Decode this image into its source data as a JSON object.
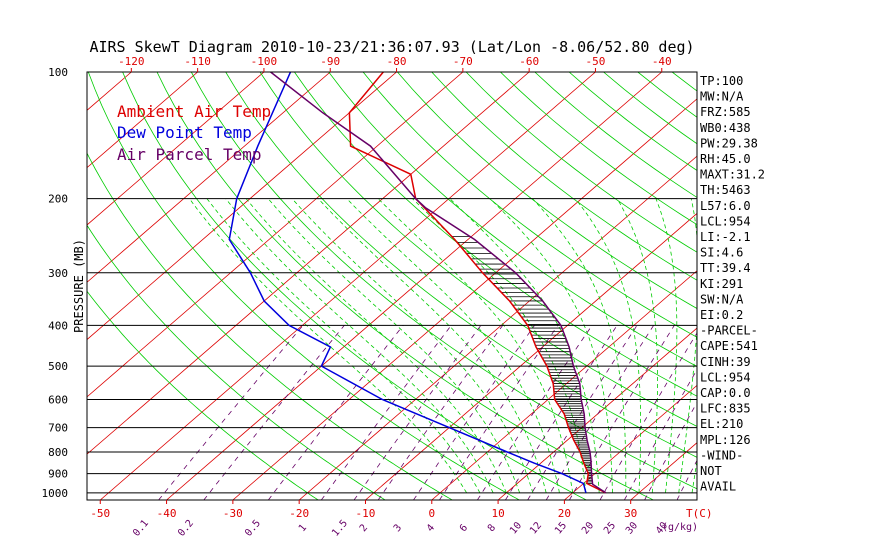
{
  "chart_data": {
    "type": "line",
    "title": "AIRS SkewT Diagram 2010-10-23/21:36:07.93 (Lat/Lon -8.06/52.80 deg)",
    "ylabel": "PRESSURE (MB)",
    "y_scale": "log",
    "ylim": [
      1040,
      100
    ],
    "xlim_bottom": [
      -52,
      40
    ],
    "pressure_ticks": [
      100,
      200,
      300,
      400,
      500,
      600,
      700,
      800,
      900,
      1000
    ],
    "isobars": [
      200,
      300,
      400,
      500,
      600,
      700,
      800,
      900,
      1000
    ],
    "top_temp_ticks": [
      "-120",
      "-110",
      "-100",
      "-90",
      "-80",
      "-70",
      "-60",
      "-50",
      "-40"
    ],
    "bottom_temp_ticks": [
      "-50",
      "-40",
      "-30",
      "-20",
      "-10",
      "0",
      "10",
      "20",
      "30"
    ],
    "bottom_temp_unit": "T(C)",
    "mixing_ratio_ticks": [
      "0.1",
      "0.2",
      "0.5",
      "1",
      "1.5",
      "2",
      "3",
      "4",
      "6",
      "8",
      "10",
      "12",
      "15",
      "20",
      "25",
      "30",
      "40"
    ],
    "mixing_ratio_unit": "(g/kg)",
    "legend": [
      {
        "label": "Ambient Air Temp",
        "color": "#dd0000"
      },
      {
        "label": "Dew Point Temp",
        "color": "#0000dd"
      },
      {
        "label": "Air Parcel Temp",
        "color": "#660066"
      }
    ],
    "series": [
      {
        "name": "Ambient Air Temp",
        "color": "#dd0000",
        "points": [
          [
            1000,
            25
          ],
          [
            950,
            20.5
          ],
          [
            900,
            19
          ],
          [
            850,
            16.5
          ],
          [
            800,
            14
          ],
          [
            750,
            11
          ],
          [
            700,
            8
          ],
          [
            650,
            5
          ],
          [
            600,
            1
          ],
          [
            550,
            -2
          ],
          [
            500,
            -6
          ],
          [
            450,
            -11
          ],
          [
            400,
            -16
          ],
          [
            350,
            -23
          ],
          [
            300,
            -32
          ],
          [
            250,
            -42
          ],
          [
            200,
            -55
          ],
          [
            175,
            -60
          ],
          [
            150,
            -74
          ],
          [
            125,
            -80
          ],
          [
            100,
            -82
          ]
        ]
      },
      {
        "name": "Dew Point Temp",
        "color": "#0000dd",
        "points": [
          [
            1000,
            22
          ],
          [
            950,
            20
          ],
          [
            900,
            15
          ],
          [
            850,
            9
          ],
          [
            800,
            3
          ],
          [
            700,
            -10
          ],
          [
            600,
            -25
          ],
          [
            500,
            -40
          ],
          [
            450,
            -42
          ],
          [
            400,
            -52
          ],
          [
            350,
            -60
          ],
          [
            300,
            -67
          ],
          [
            250,
            -76
          ],
          [
            200,
            -82
          ],
          [
            150,
            -88
          ],
          [
            100,
            -96
          ]
        ]
      },
      {
        "name": "Air Parcel Temp",
        "color": "#660066",
        "points": [
          [
            1000,
            25
          ],
          [
            954,
            21.5
          ],
          [
            900,
            19.5
          ],
          [
            835,
            17
          ],
          [
            800,
            15.5
          ],
          [
            750,
            13
          ],
          [
            700,
            10.5
          ],
          [
            650,
            8
          ],
          [
            600,
            5
          ],
          [
            550,
            2
          ],
          [
            500,
            -2
          ],
          [
            450,
            -6
          ],
          [
            400,
            -11
          ],
          [
            350,
            -18
          ],
          [
            300,
            -27
          ],
          [
            250,
            -39
          ],
          [
            210,
            -52
          ],
          [
            200,
            -55
          ],
          [
            150,
            -71
          ],
          [
            125,
            -84
          ],
          [
            100,
            -99
          ]
        ]
      }
    ],
    "indices": [
      "TP:100",
      "MW:N/A",
      "FRZ:585",
      "WB0:438",
      "PW:29.38",
      "RH:45.0",
      "MAXT:31.2",
      "TH:5463",
      "L57:6.0",
      "LCL:954",
      "LI:-2.1",
      "SI:4.6",
      "TT:39.4",
      "KI:291",
      "SW:N/A",
      "EI:0.2",
      "-PARCEL-",
      "CAPE:541",
      "CINH:39",
      "LCL:954",
      "CAP:0.0",
      "LFC:835",
      "EL:210",
      "MPL:126",
      "-WIND-",
      "NOT",
      "AVAIL"
    ]
  },
  "colors": {
    "isotherm": "#dd0000",
    "dry_adiabat": "#00cc00",
    "moist_adiabat": "#00cc00",
    "mixing_ratio": "#660066",
    "axis": "#000000",
    "tick_labels_bottom": "#dd0000",
    "mixing_labels": "#660066"
  }
}
